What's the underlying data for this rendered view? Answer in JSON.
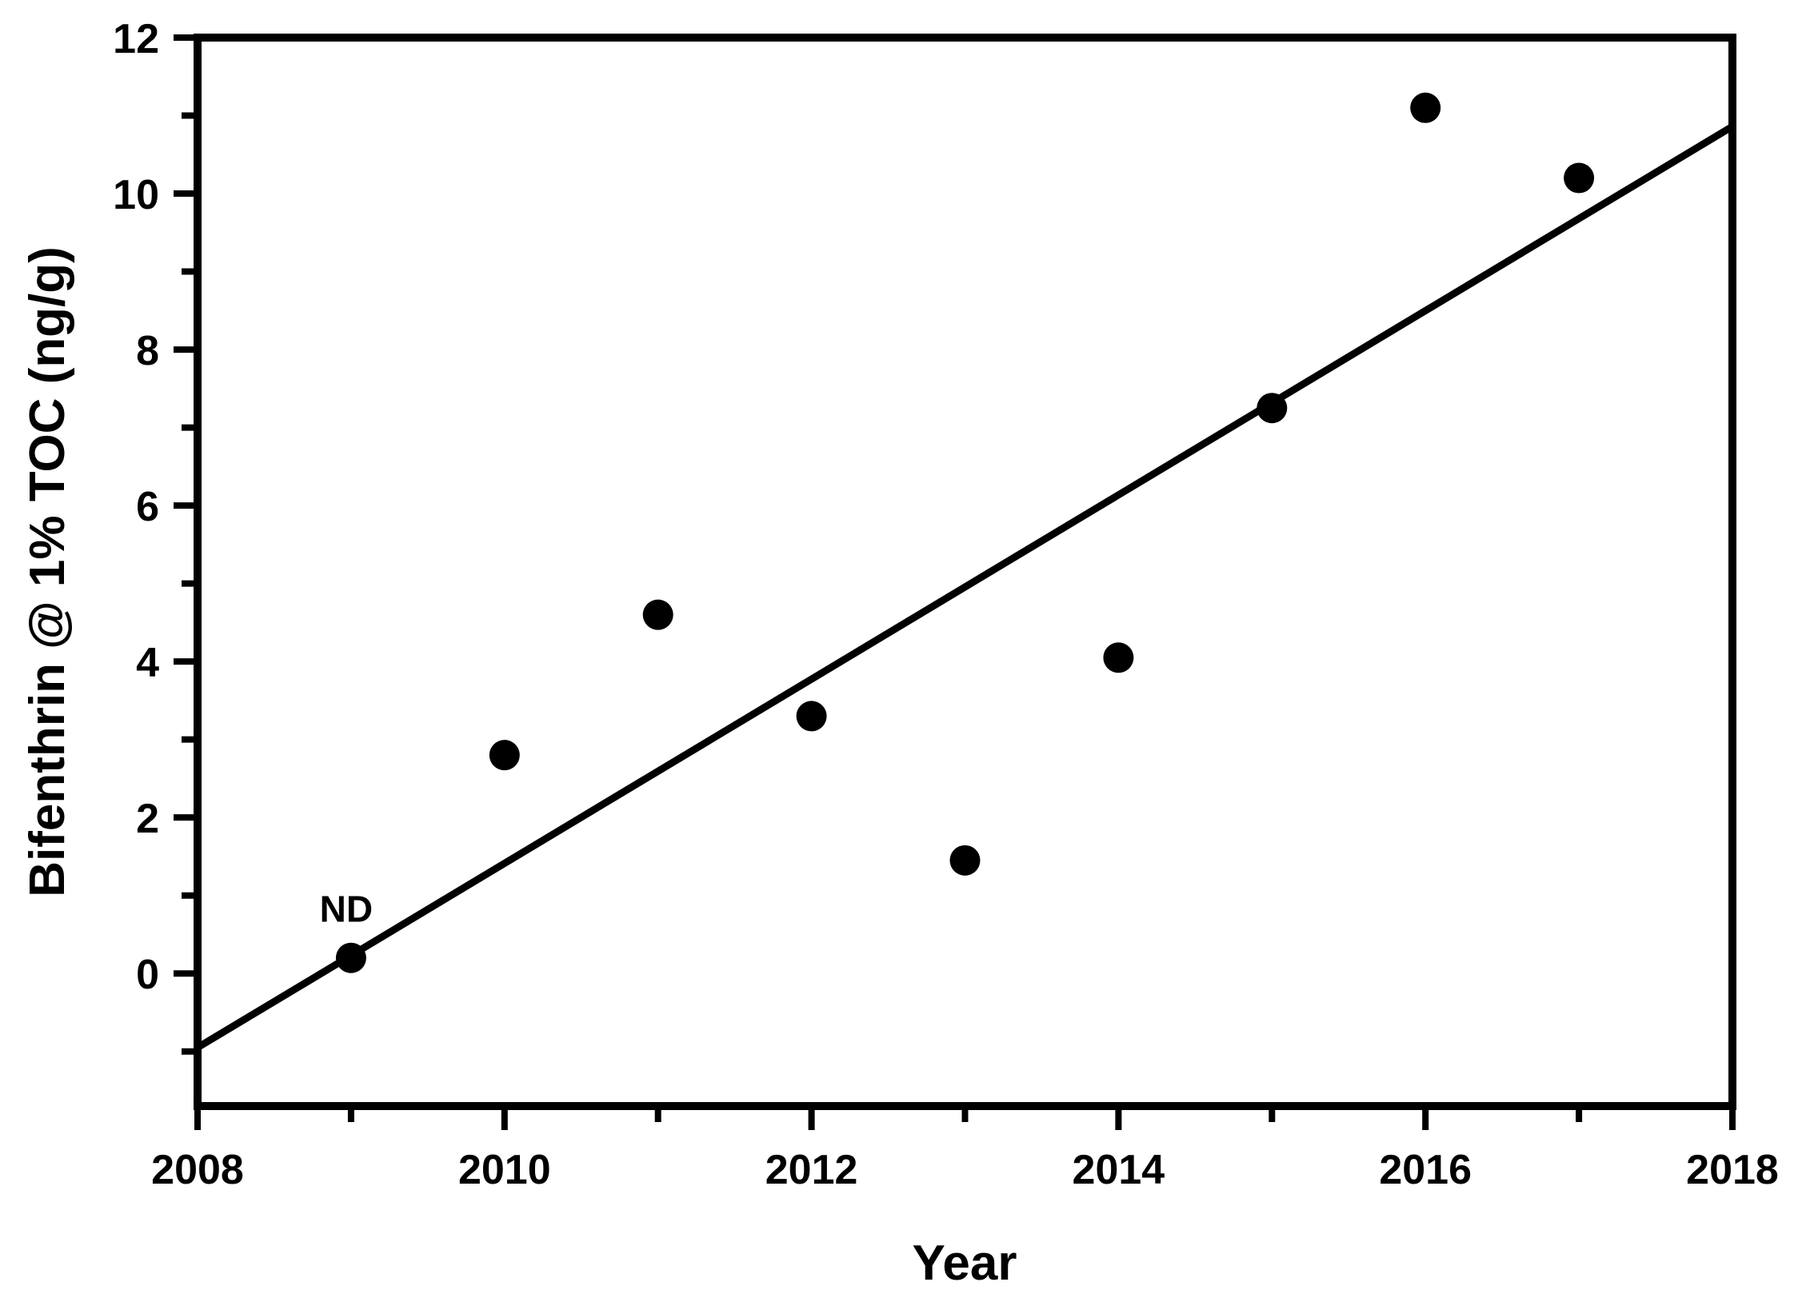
{
  "figure": {
    "background_color": "#ffffff",
    "ink_color": "#000000"
  },
  "chart_data": {
    "type": "scatter",
    "title": "",
    "xlabel": "Year",
    "ylabel": "Bifenthrin @ 1% TOC (ng/g)",
    "xlim": [
      2008,
      2018
    ],
    "ylim": [
      -1.7,
      12
    ],
    "grid": false,
    "legend": null,
    "x_major_ticks": [
      2008,
      2010,
      2012,
      2014,
      2016,
      2018
    ],
    "x_minor_ticks": [
      2009,
      2011,
      2013,
      2015,
      2017
    ],
    "y_major_ticks": [
      0,
      2,
      4,
      6,
      8,
      10,
      12
    ],
    "y_minor_ticks": [
      -1,
      1,
      3,
      5,
      7,
      9,
      11
    ],
    "series": [
      {
        "name": "Bifenthrin at 1% TOC",
        "marker": "filled-circle",
        "color": "#000000",
        "points": [
          {
            "x": 2009,
            "y": 0.2,
            "label": "ND"
          },
          {
            "x": 2010,
            "y": 2.8
          },
          {
            "x": 2011,
            "y": 4.6
          },
          {
            "x": 2012,
            "y": 3.3
          },
          {
            "x": 2013,
            "y": 1.45
          },
          {
            "x": 2014,
            "y": 4.05
          },
          {
            "x": 2015,
            "y": 7.25
          },
          {
            "x": 2016,
            "y": 11.1
          },
          {
            "x": 2017,
            "y": 10.2
          }
        ]
      }
    ],
    "trend_line": {
      "x1": 2008,
      "y1": -0.95,
      "x2": 2018,
      "y2": 10.86,
      "color": "#000000"
    }
  }
}
